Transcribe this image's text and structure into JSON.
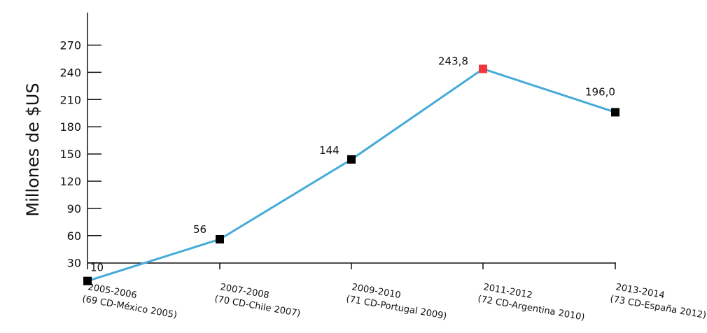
{
  "chart_data": {
    "type": "line",
    "title": "",
    "xlabel": "",
    "ylabel": "Millones de $US",
    "ylim": [
      0,
      270
    ],
    "yticks": [
      30,
      60,
      90,
      120,
      150,
      180,
      210,
      240,
      270
    ],
    "grid": false,
    "categories": [
      [
        "2005-2006",
        "(69 CD-México 2005)"
      ],
      [
        "2007-2008",
        "(70 CD-Chile 2007)"
      ],
      [
        "2009-2010",
        "(71 CD-Portugal 2009)"
      ],
      [
        "2011-2012",
        "(72 CD-Argentina 2010)"
      ],
      [
        "2013-2014",
        "(73 CD-España 2012)"
      ]
    ],
    "series": [
      {
        "values": [
          10,
          56,
          144,
          243.8,
          196.0
        ],
        "value_labels": [
          "10",
          "56",
          "144",
          "243,8",
          "196,0"
        ],
        "highlight_index": 3
      }
    ],
    "colors": {
      "line": "#45abd8",
      "marker": "#000000",
      "highlight_marker": "#f2353a",
      "axis": "#111111"
    }
  }
}
